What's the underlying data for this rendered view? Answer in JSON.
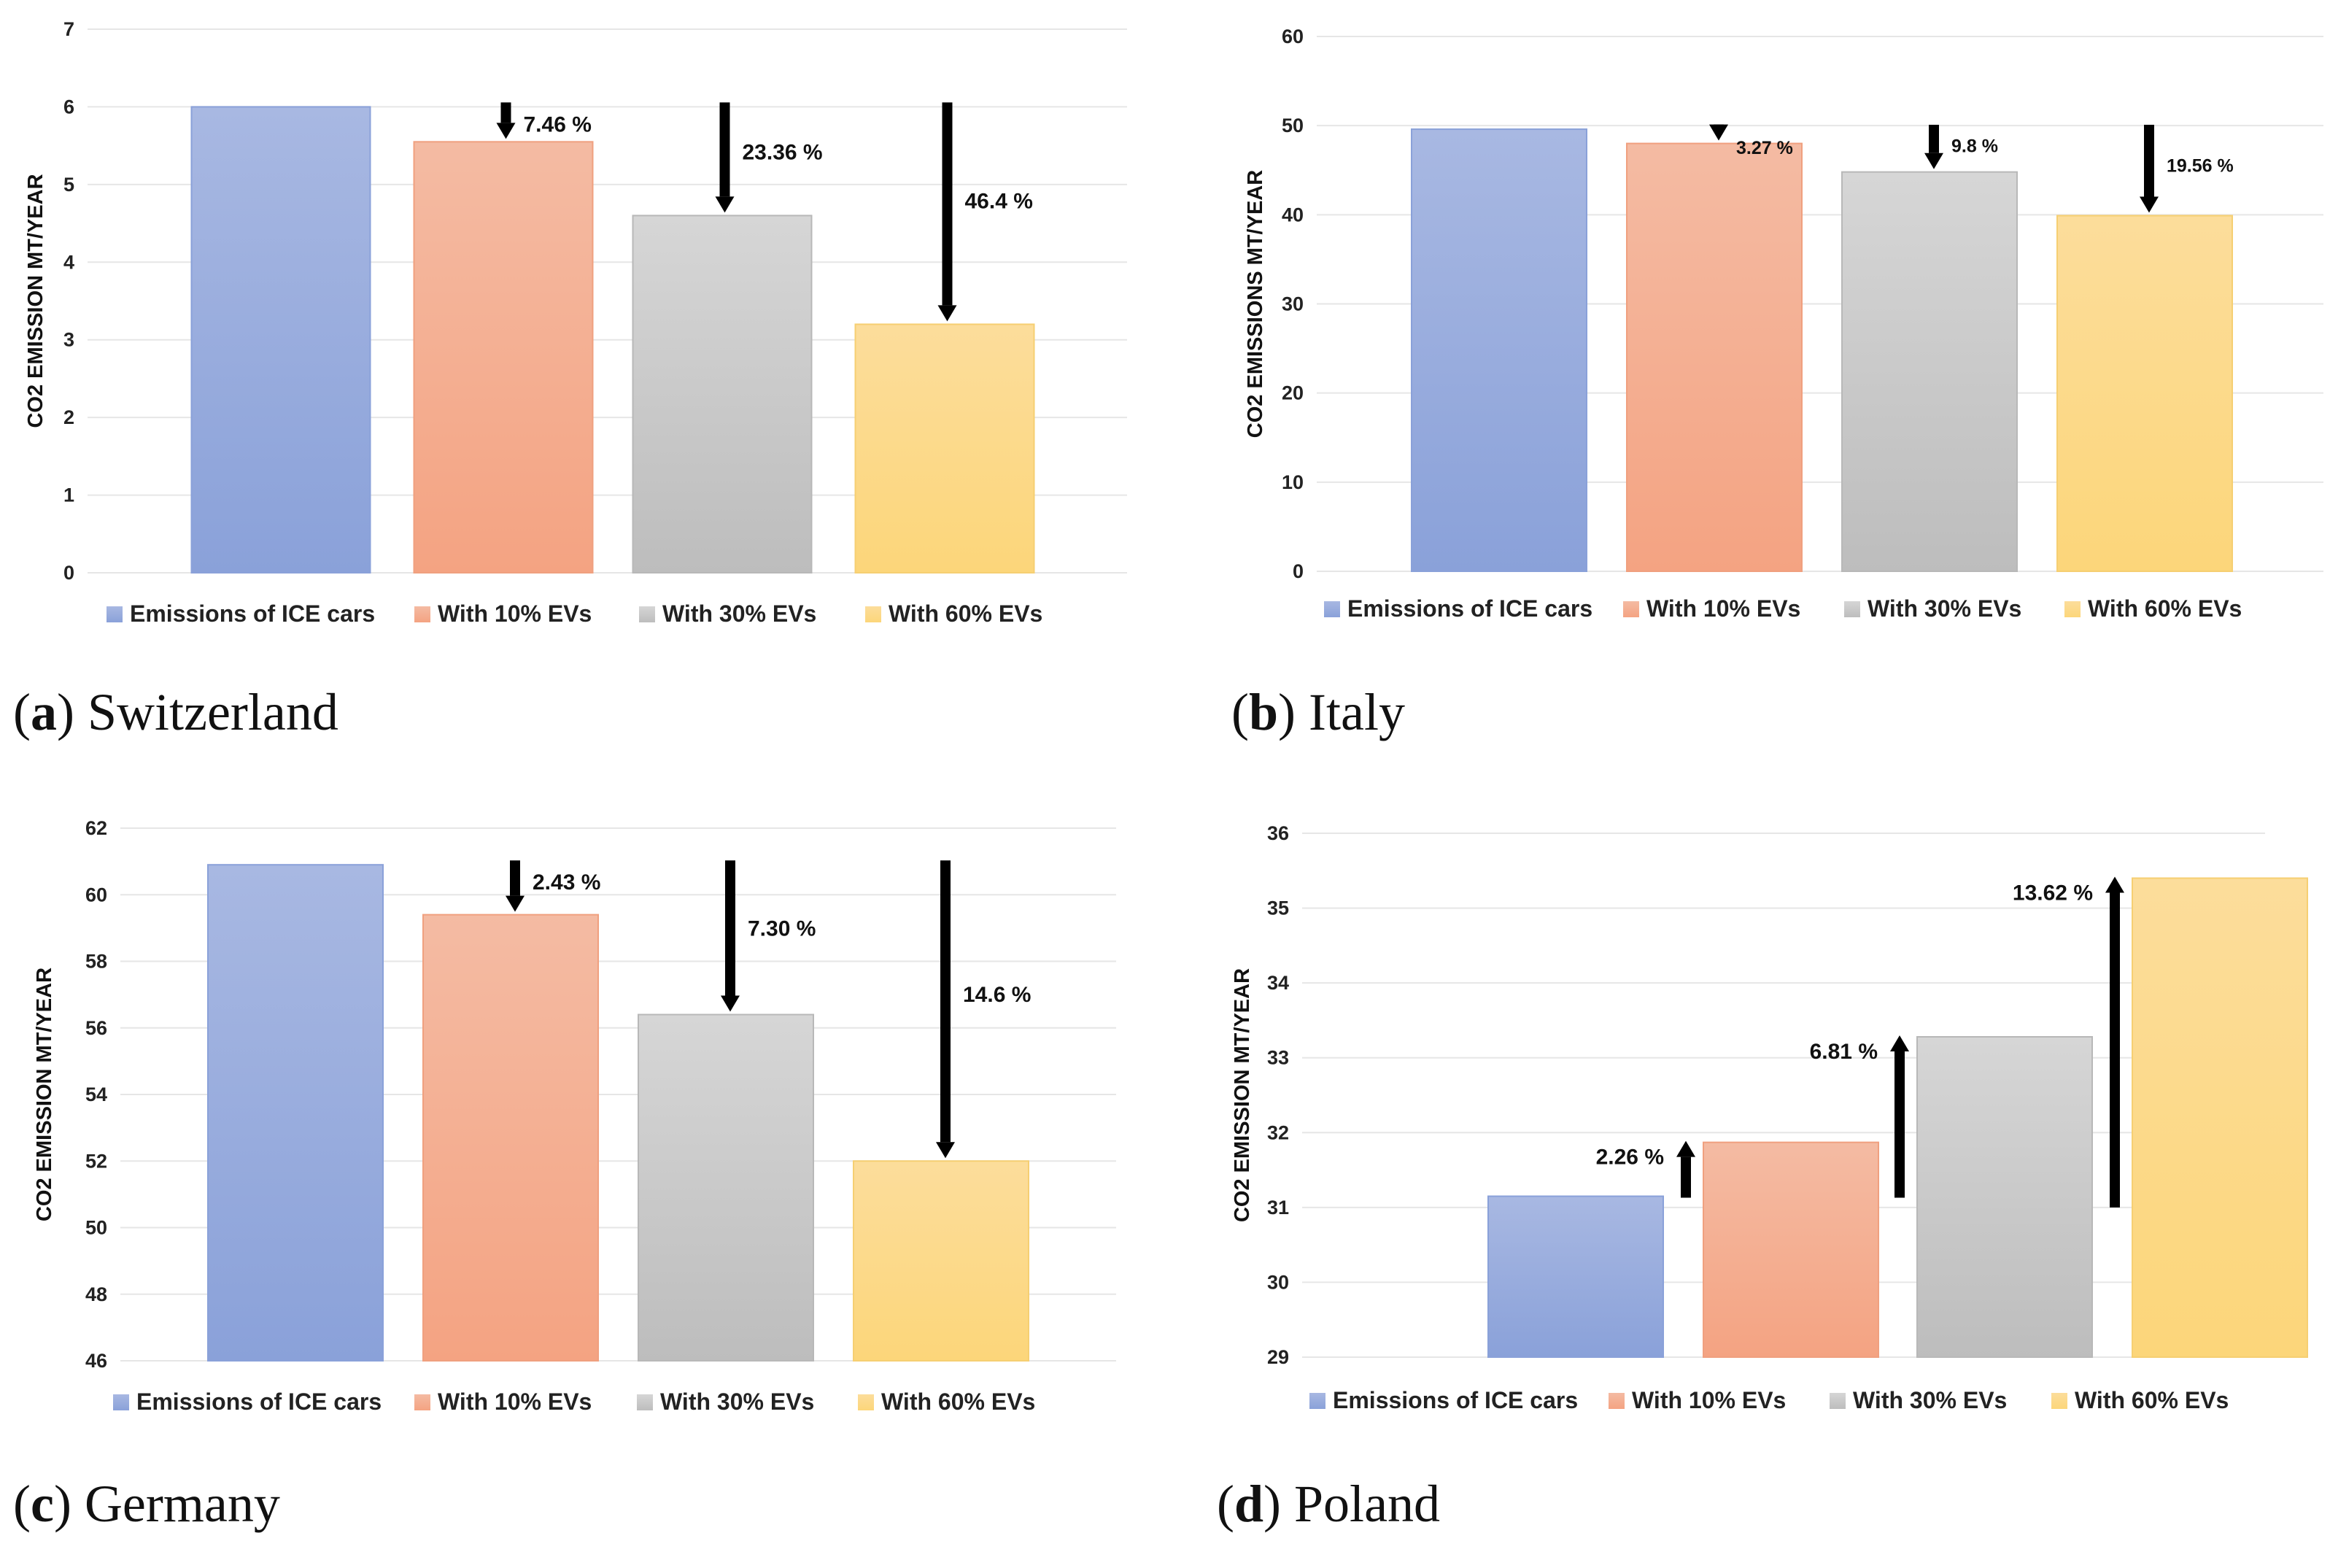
{
  "colors": {
    "blue_top": "#a8b8e2",
    "blue_bottom": "#8aa1d9",
    "orange_top": "#f4bba3",
    "orange_bottom": "#f4a382",
    "gray_top": "#d6d6d6",
    "gray_bottom": "#bdbdbd",
    "yellow_top": "#fcdd9b",
    "yellow_bottom": "#fcd67a",
    "grid": "#e6e6e6",
    "arrow": "#000000"
  },
  "chart_data": [
    {
      "type": "bar",
      "caption_letter": "a",
      "caption_text": "Switzerland",
      "ylabel": "CO2 EMISSION MT/YEAR",
      "ylim": [
        0,
        7
      ],
      "yticks": [
        "0",
        "1",
        "2",
        "3",
        "4",
        "5",
        "6",
        "7"
      ],
      "categories": [
        "Emissions of ICE cars",
        "With 10% EVs",
        "With 30% EVs",
        "With 60% EVs"
      ],
      "values": [
        6.0,
        5.55,
        4.6,
        3.2
      ],
      "arrow_direction": "down",
      "changes": [
        "",
        "7.46 %",
        "23.36 %",
        "46.4 %"
      ],
      "gridlines": true,
      "legend_position": "bottom"
    },
    {
      "type": "bar",
      "caption_letter": "b",
      "caption_text": "Italy",
      "ylabel": "CO2 EMISSIONS MT/YEAR",
      "ylim": [
        0,
        60
      ],
      "yticks": [
        "0",
        "10",
        "20",
        "30",
        "40",
        "50",
        "60"
      ],
      "categories": [
        "Emissions of ICE cars",
        "With 10% EVs",
        "With 30% EVs",
        "With 60% EVs"
      ],
      "values": [
        49.6,
        48.0,
        44.8,
        39.9
      ],
      "arrow_direction": "down",
      "changes": [
        "",
        "3.27 %",
        "9.8 %",
        "19.56 %"
      ],
      "gridlines": true,
      "legend_position": "bottom"
    },
    {
      "type": "bar",
      "caption_letter": "c",
      "caption_text": "Germany",
      "ylabel": "CO2 EMISSION MT/YEAR",
      "ylim": [
        46,
        62
      ],
      "yticks": [
        "46",
        "48",
        "50",
        "52",
        "54",
        "56",
        "58",
        "60",
        "62"
      ],
      "categories": [
        "Emissions of ICE cars",
        "With 10% EVs",
        "With 30% EVs",
        "With 60% EVs"
      ],
      "values": [
        60.9,
        59.4,
        56.4,
        52.0
      ],
      "arrow_direction": "down",
      "changes": [
        "",
        "2.43 %",
        "7.30 %",
        "14.6 %"
      ],
      "gridlines": true,
      "legend_position": "bottom"
    },
    {
      "type": "bar",
      "caption_letter": "d",
      "caption_text": "Poland",
      "ylabel": "CO2 EMISSION MT/YEAR",
      "ylim": [
        29,
        36
      ],
      "yticks": [
        "29",
        "30",
        "31",
        "32",
        "33",
        "34",
        "35",
        "36"
      ],
      "categories": [
        "Emissions of ICE cars",
        "With 10% EVs",
        "With 30% EVs",
        "With 60% EVs"
      ],
      "values": [
        31.15,
        31.87,
        33.28,
        35.4
      ],
      "arrow_direction": "up",
      "changes": [
        "",
        "2.26 %",
        "6.81 %",
        "13.62 %"
      ],
      "gridlines": true,
      "legend_position": "bottom"
    }
  ]
}
